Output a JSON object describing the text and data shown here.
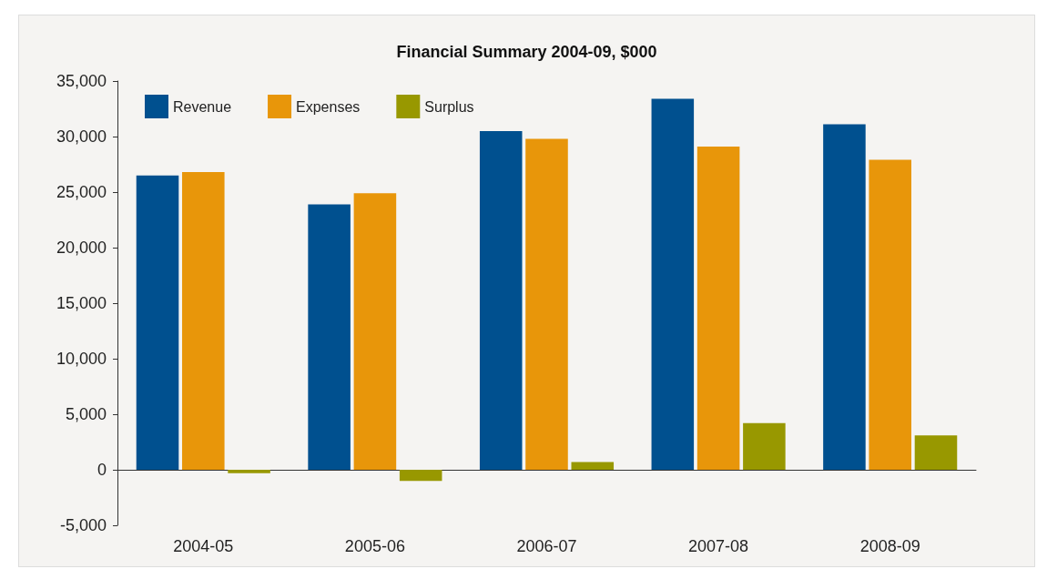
{
  "chart_data": {
    "type": "bar",
    "title": "Financial Summary 2004-09, $000",
    "categories": [
      "2004-05",
      "2005-06",
      "2006-07",
      "2007-08",
      "2008-09"
    ],
    "series": [
      {
        "name": "Revenue",
        "color": "#00508f",
        "values": [
          26500,
          23900,
          30500,
          33400,
          31100
        ]
      },
      {
        "name": "Expenses",
        "color": "#e8960a",
        "values": [
          26800,
          24900,
          29800,
          29100,
          27900
        ]
      },
      {
        "name": "Surplus",
        "color": "#989800",
        "values": [
          -300,
          -1000,
          700,
          4200,
          3100
        ]
      }
    ],
    "ylim": [
      -5000,
      35000
    ],
    "yticks": [
      {
        "value": -5000,
        "label": "-5,000"
      },
      {
        "value": 0,
        "label": "0"
      },
      {
        "value": 5000,
        "label": "5,000"
      },
      {
        "value": 10000,
        "label": "10,000"
      },
      {
        "value": 15000,
        "label": "15,000"
      },
      {
        "value": 20000,
        "label": "20,000"
      },
      {
        "value": 25000,
        "label": "25,000"
      },
      {
        "value": 30000,
        "label": "30,000"
      },
      {
        "value": 35000,
        "label": "35,000"
      }
    ],
    "legend": "top left"
  }
}
